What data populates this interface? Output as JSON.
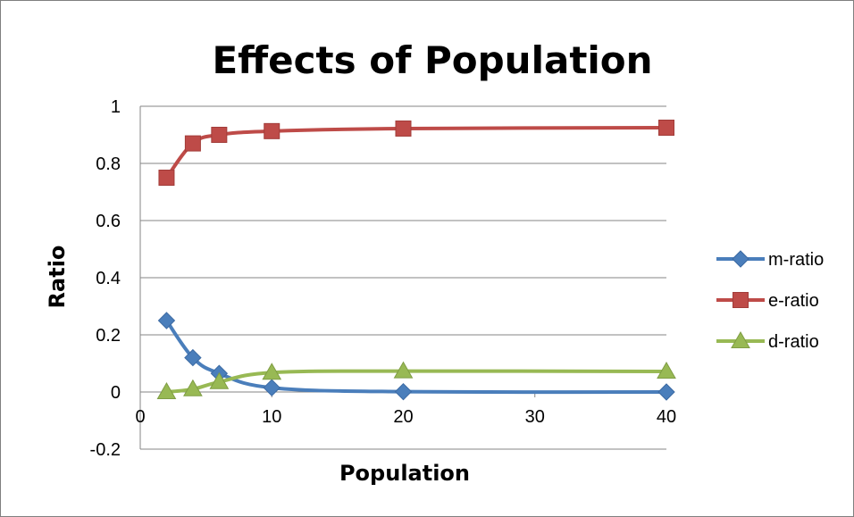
{
  "chart_data": {
    "type": "line",
    "title": "Effects of Population",
    "xlabel": "Population",
    "ylabel": "Ratio",
    "xlim": [
      0,
      40
    ],
    "ylim": [
      -0.2,
      1
    ],
    "x_ticks": [
      "0",
      "10",
      "20",
      "30",
      "40"
    ],
    "y_ticks": [
      "-0.2",
      "0",
      "0.2",
      "0.4",
      "0.6",
      "0.8",
      "1"
    ],
    "x": [
      2,
      4,
      6,
      10,
      20,
      40
    ],
    "series": [
      {
        "name": "m-ratio",
        "color": "#4a7ebb",
        "marker": "diamond",
        "values": [
          0.25,
          0.12,
          0.065,
          0.015,
          0.001,
          0.0
        ]
      },
      {
        "name": "e-ratio",
        "color": "#be4b48",
        "marker": "square",
        "values": [
          0.75,
          0.87,
          0.9,
          0.913,
          0.922,
          0.925
        ]
      },
      {
        "name": "d-ratio",
        "color": "#98b954",
        "marker": "triangle",
        "values": [
          0.0,
          0.01,
          0.035,
          0.068,
          0.073,
          0.072
        ]
      }
    ],
    "grid": true,
    "legend_position": "right"
  }
}
